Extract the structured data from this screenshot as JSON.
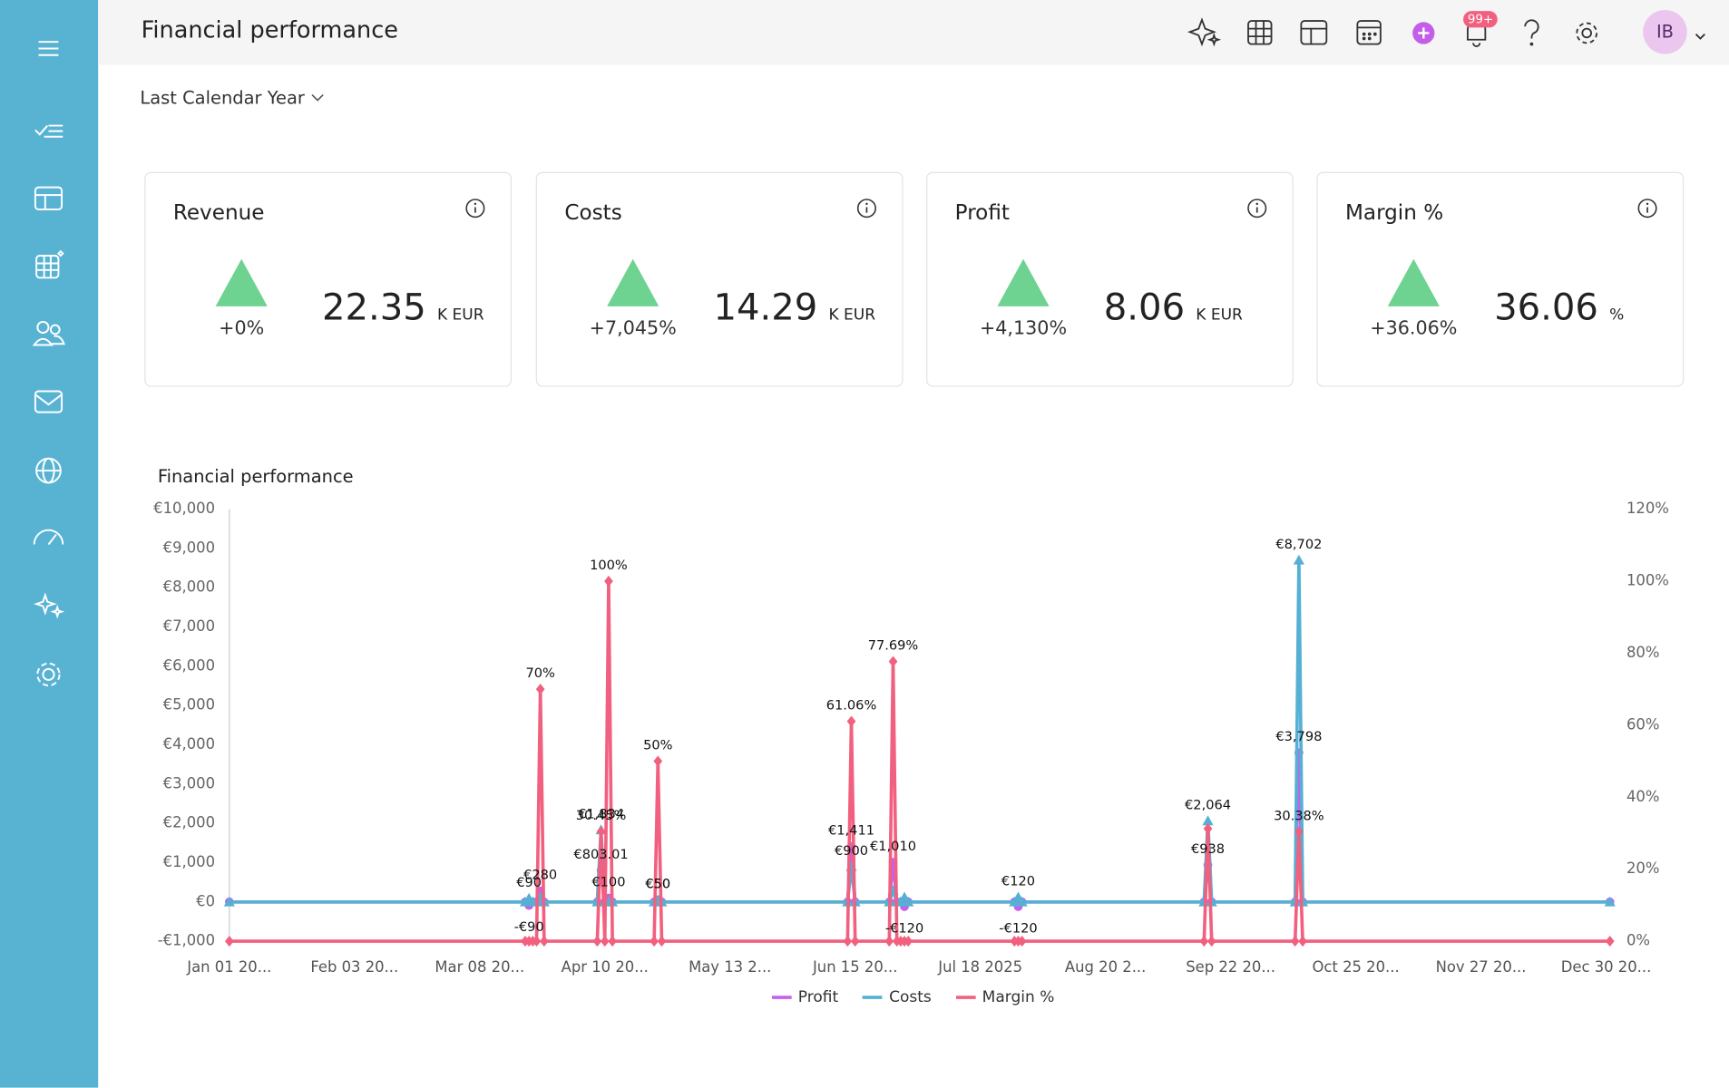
{
  "header": {
    "title": "Financial performance",
    "notifications": "99+",
    "avatar": "IB"
  },
  "filter": {
    "period": "Last Calendar Year"
  },
  "kpis": [
    {
      "title": "Revenue",
      "change": "+0%",
      "value": "22.35",
      "unit": "K EUR"
    },
    {
      "title": "Costs",
      "change": "+7,045%",
      "value": "14.29",
      "unit": "K EUR"
    },
    {
      "title": "Profit",
      "change": "+4,130%",
      "value": "8.06",
      "unit": "K EUR"
    },
    {
      "title": "Margin %",
      "change": "+36.06%",
      "value": "36.06",
      "unit": "%"
    }
  ],
  "chart_data": {
    "type": "line",
    "title": "Financial performance",
    "x": [
      "2025-01-01",
      "2025-03-20",
      "2025-03-21",
      "2025-03-22",
      "2025-03-23",
      "2025-03-24",
      "2025-03-25",
      "2025-04-08",
      "2025-04-09",
      "2025-04-10",
      "2025-04-11",
      "2025-04-12",
      "2025-04-23",
      "2025-04-24",
      "2025-04-25",
      "2025-06-13",
      "2025-06-14",
      "2025-06-15",
      "2025-06-24",
      "2025-06-25",
      "2025-06-26",
      "2025-06-27",
      "2025-06-28",
      "2025-06-29",
      "2025-07-27",
      "2025-07-28",
      "2025-07-29",
      "2025-09-15",
      "2025-09-16",
      "2025-09-17",
      "2025-10-09",
      "2025-10-10",
      "2025-10-11",
      "2025-12-31"
    ],
    "xlim": [
      "2025-01-01",
      "2025-12-31"
    ],
    "xticks": [
      {
        "value": "2025-01-01",
        "label": "Jan 01 20..."
      },
      {
        "value": "2025-02-03",
        "label": "Feb 03 20..."
      },
      {
        "value": "2025-03-08",
        "label": "Mar 08 20..."
      },
      {
        "value": "2025-04-10",
        "label": "Apr 10 20..."
      },
      {
        "value": "2025-05-13",
        "label": "May 13 2..."
      },
      {
        "value": "2025-06-15",
        "label": "Jun 15 20..."
      },
      {
        "value": "2025-07-18",
        "label": "Jul 18 2025"
      },
      {
        "value": "2025-08-20",
        "label": "Aug 20 2..."
      },
      {
        "value": "2025-09-22",
        "label": "Sep 22 20..."
      },
      {
        "value": "2025-10-25",
        "label": "Oct 25 20..."
      },
      {
        "value": "2025-11-27",
        "label": "Nov 27 20..."
      },
      {
        "value": "2025-12-30",
        "label": "Dec 30 20..."
      }
    ],
    "ylim": [
      -1000,
      10000
    ],
    "yticks": [
      {
        "value": -1000,
        "label": "-€1,000"
      },
      {
        "value": 0,
        "label": "€0"
      },
      {
        "value": 1000,
        "label": "€1,000"
      },
      {
        "value": 2000,
        "label": "€2,000"
      },
      {
        "value": 3000,
        "label": "€3,000"
      },
      {
        "value": 4000,
        "label": "€4,000"
      },
      {
        "value": 5000,
        "label": "€5,000"
      },
      {
        "value": 6000,
        "label": "€6,000"
      },
      {
        "value": 7000,
        "label": "€7,000"
      },
      {
        "value": 8000,
        "label": "€8,000"
      },
      {
        "value": 9000,
        "label": "€9,000"
      },
      {
        "value": 10000,
        "label": "€10,000"
      }
    ],
    "y2lim": [
      0,
      120
    ],
    "y2ticks": [
      {
        "value": 0,
        "label": "0%"
      },
      {
        "value": 20,
        "label": "20%"
      },
      {
        "value": 40,
        "label": "40%"
      },
      {
        "value": 60,
        "label": "60%"
      },
      {
        "value": 80,
        "label": "80%"
      },
      {
        "value": 100,
        "label": "100%"
      },
      {
        "value": 120,
        "label": "120%"
      }
    ],
    "grid": false,
    "series": [
      {
        "name": "Profit",
        "color": "#c660ee",
        "values": [
          0,
          0,
          -90,
          0,
          0,
          280,
          0,
          0,
          803.01,
          0,
          100,
          0,
          0,
          50,
          0,
          0,
          1411,
          0,
          0,
          1010,
          0,
          0,
          -120,
          0,
          0,
          -120,
          0,
          0,
          938,
          0,
          0,
          3798,
          0,
          0
        ],
        "value_labels": [
          null,
          null,
          "-€90",
          null,
          null,
          "€280",
          null,
          null,
          "€803.01",
          null,
          "€100",
          null,
          null,
          "€50",
          null,
          null,
          "€1,411",
          null,
          null,
          "€1,010",
          null,
          null,
          "-€120",
          null,
          null,
          "-€120",
          null,
          null,
          "€938",
          null,
          null,
          "€3,798",
          null,
          null
        ]
      },
      {
        "name": "Costs",
        "color": "#55b0d4",
        "values": [
          0,
          0,
          90,
          0,
          0,
          120,
          0,
          0,
          1834,
          0,
          0,
          0,
          0,
          50,
          0,
          0,
          900,
          0,
          0,
          290,
          0,
          0,
          120,
          0,
          0,
          120,
          0,
          0,
          2064,
          0,
          0,
          8702,
          0,
          0
        ],
        "value_labels": [
          null,
          null,
          "€90",
          null,
          null,
          null,
          null,
          null,
          "€1,834",
          null,
          null,
          null,
          null,
          "€50",
          null,
          null,
          "€900",
          null,
          null,
          null,
          null,
          null,
          null,
          null,
          null,
          "€120",
          null,
          null,
          "€2,064",
          null,
          null,
          "€8,702",
          null,
          null
        ]
      },
      {
        "name": "Margin %",
        "color": "#f2607f",
        "axis": "y2",
        "values": [
          0,
          0,
          0,
          0,
          0,
          70,
          0,
          0,
          30.45,
          0,
          100,
          0,
          0,
          50,
          0,
          0,
          61.06,
          0,
          0,
          77.69,
          0,
          0,
          0,
          0,
          0,
          0,
          0,
          0,
          31.24,
          0,
          0,
          30.38,
          0,
          0
        ],
        "value_labels": [
          null,
          null,
          null,
          null,
          null,
          "70%",
          null,
          null,
          "30.45%",
          null,
          "100%",
          null,
          null,
          "50%",
          null,
          null,
          "61.06%",
          null,
          null,
          "77.69%",
          null,
          null,
          null,
          null,
          null,
          null,
          null,
          null,
          null,
          null,
          null,
          "30.38%",
          null,
          null
        ]
      }
    ]
  }
}
